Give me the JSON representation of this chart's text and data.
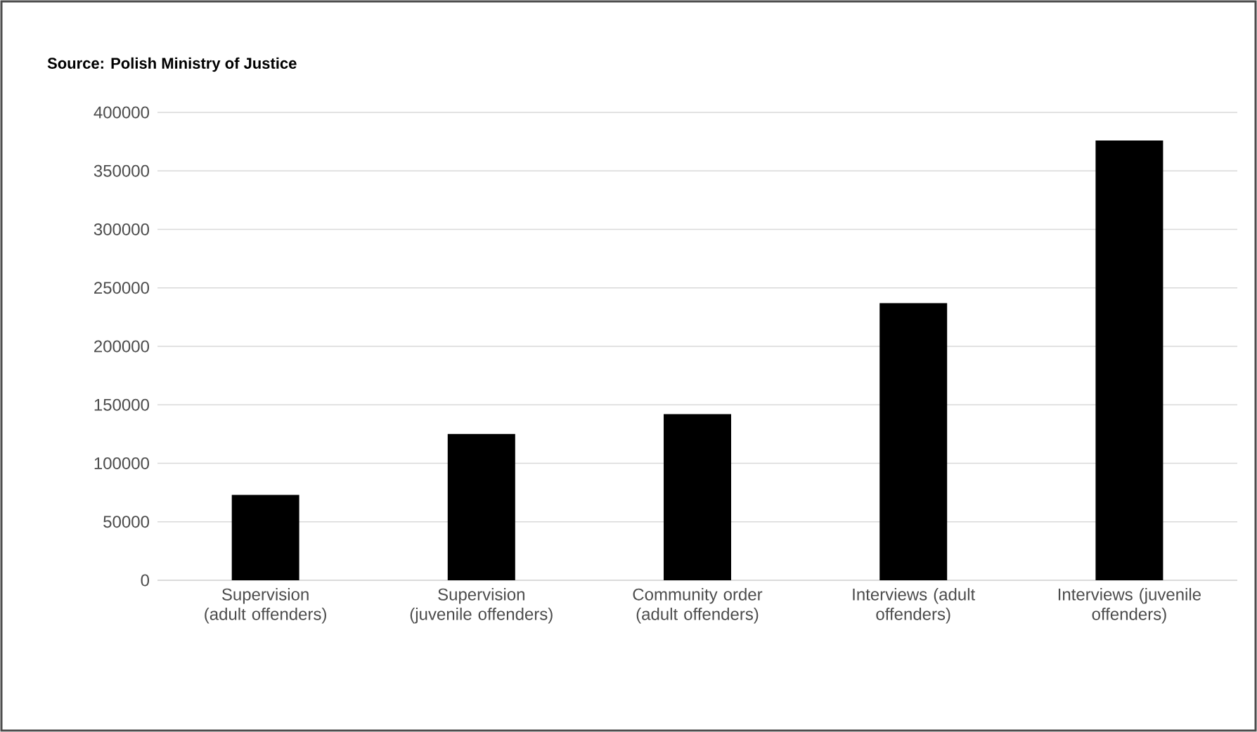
{
  "chart_data": {
    "type": "bar",
    "annotations": [
      "Source: Polish Ministry of Justice"
    ],
    "categories": [
      "Supervision (adult offenders)",
      "Supervision (juvenile offenders)",
      "Community order (adult offenders)",
      "Interviews (adult offenders)",
      "Interviews (juvenile offenders)"
    ],
    "values": [
      73000,
      125000,
      142000,
      237000,
      376000
    ],
    "color": "#000000",
    "ylim": [
      0,
      400000
    ],
    "yticks": [
      0,
      50000,
      100000,
      150000,
      200000,
      250000,
      300000,
      350000,
      400000
    ],
    "grid": "y"
  }
}
